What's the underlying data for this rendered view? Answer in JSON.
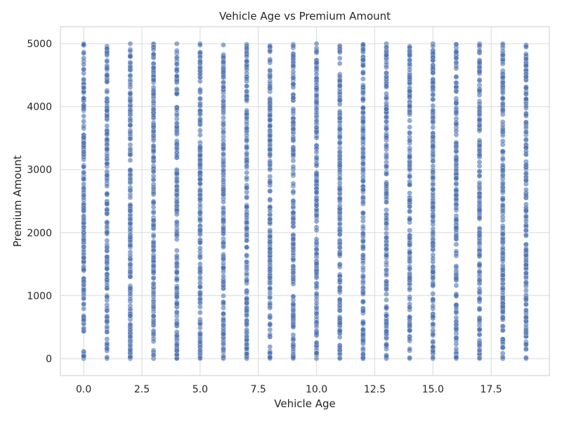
{
  "chart_data": {
    "type": "scatter",
    "title": "Vehicle Age vs Premium Amount",
    "xlabel": "Vehicle Age",
    "ylabel": "Premium Amount",
    "xlim": [
      -1.0,
      20.0
    ],
    "ylim": [
      -270,
      5270
    ],
    "x_ticks": [
      0.0,
      2.5,
      5.0,
      7.5,
      10.0,
      12.5,
      15.0,
      17.5
    ],
    "x_tick_labels": [
      "0.0",
      "2.5",
      "5.0",
      "7.5",
      "10.0",
      "12.5",
      "15.0",
      "17.5"
    ],
    "y_ticks": [
      0,
      1000,
      2000,
      3000,
      4000,
      5000
    ],
    "y_tick_labels": [
      "0",
      "1000",
      "2000",
      "3000",
      "4000",
      "5000"
    ],
    "grid": true,
    "legend": "none",
    "point_color": "#4c72b0",
    "point_alpha": 0.6,
    "series": [
      {
        "x_values": [
          0,
          1,
          2,
          3,
          4,
          5,
          6,
          7,
          8,
          9,
          10,
          11,
          12,
          13,
          14,
          15,
          16,
          17,
          18,
          19
        ],
        "y_range_per_x": [
          [
            0,
            5000
          ],
          [
            0,
            4960
          ],
          [
            0,
            5000
          ],
          [
            0,
            5000
          ],
          [
            0,
            5000
          ],
          [
            0,
            5000
          ],
          [
            0,
            4980
          ],
          [
            0,
            4990
          ],
          [
            0,
            4970
          ],
          [
            0,
            4990
          ],
          [
            0,
            5000
          ],
          [
            0,
            4970
          ],
          [
            0,
            4990
          ],
          [
            0,
            5000
          ],
          [
            0,
            4960
          ],
          [
            0,
            5000
          ],
          [
            0,
            4990
          ],
          [
            0,
            5000
          ],
          [
            0,
            5000
          ],
          [
            0,
            4980
          ]
        ]
      }
    ]
  }
}
